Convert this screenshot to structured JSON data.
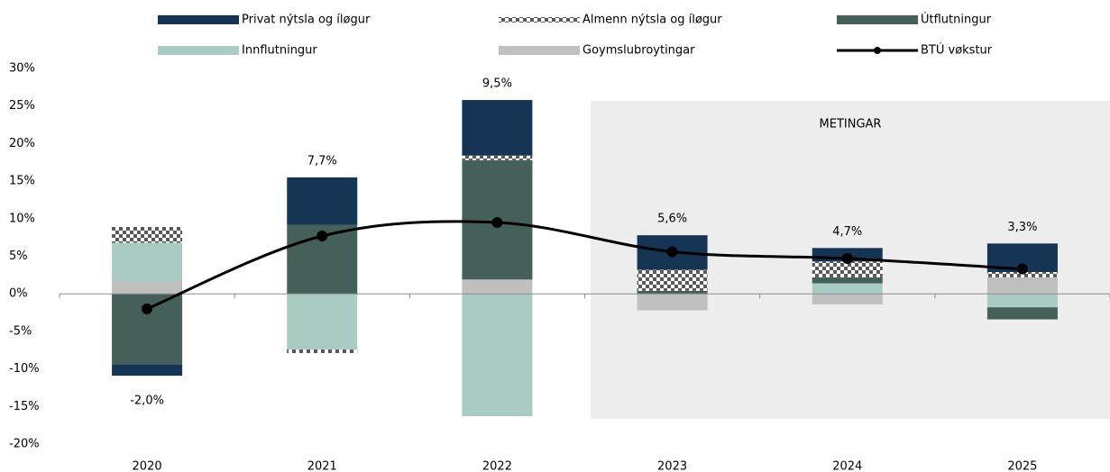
{
  "chart_data": {
    "type": "stacked_bar_line",
    "annotation": "METINGAR",
    "categories": [
      "2020",
      "2021",
      "2022",
      "2023",
      "2024",
      "2025"
    ],
    "series": [
      {
        "name": "Privat nýtsla og íløgur",
        "color": "#163454",
        "values": [
          -1.5,
          6.3,
          7.4,
          4.6,
          1.8,
          3.8
        ]
      },
      {
        "name": "Almenn nýtsla og íløgur",
        "color": "#595959",
        "pattern": "checker",
        "values": [
          2.1,
          -0.5,
          0.6,
          2.8,
          2.1,
          0.7
        ]
      },
      {
        "name": "Útflutningur",
        "color": "#45605a",
        "values": [
          -9.4,
          9.2,
          15.9,
          0.4,
          0.8,
          -1.6
        ]
      },
      {
        "name": "Innflutningur",
        "color": "#a9cbc3",
        "values": [
          5.1,
          -7.4,
          -16.3,
          0,
          1.4,
          -1.8
        ]
      },
      {
        "name": "Goymslubroytingar",
        "color": "#bfbfbf",
        "values": [
          1.7,
          0,
          1.9,
          -2.2,
          -1.4,
          2.2
        ]
      },
      {
        "name": "BTÚ vøkstur",
        "color": "#000000",
        "type": "line",
        "values": [
          -2.0,
          7.7,
          9.5,
          5.6,
          4.7,
          3.3
        ],
        "value_labels": [
          "-2,0%",
          "7,7%",
          "9,5%",
          "5,6%",
          "4,7%",
          "3,3%"
        ]
      }
    ],
    "ylim": [
      -20,
      30
    ],
    "yticks": [
      {
        "value": -20,
        "label": "-20%"
      },
      {
        "value": -15,
        "label": "-15%"
      },
      {
        "value": -10,
        "label": "-10%"
      },
      {
        "value": -5,
        "label": "-5%"
      },
      {
        "value": 0,
        "label": "0%"
      },
      {
        "value": 5,
        "label": "5%"
      },
      {
        "value": 10,
        "label": "10%"
      },
      {
        "value": 15,
        "label": "15%"
      },
      {
        "value": 20,
        "label": "20%"
      },
      {
        "value": 25,
        "label": "25%"
      },
      {
        "value": 30,
        "label": "30%"
      }
    ]
  }
}
